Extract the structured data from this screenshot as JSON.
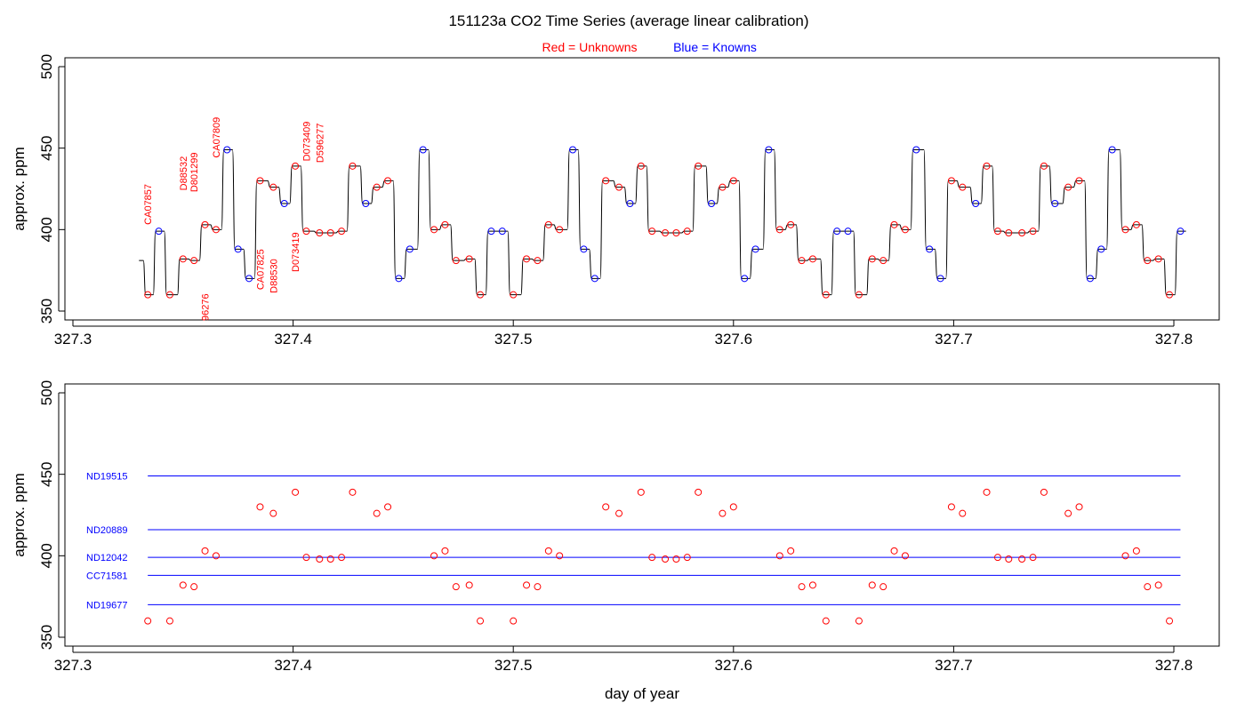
{
  "title": "151123a   CO2 Time Series (average linear calibration)",
  "legend": {
    "red_prefix": "Red = ",
    "red_label": "Unknowns",
    "blue_prefix": "Blue = ",
    "blue_label": "Knowns"
  },
  "colors": {
    "unknown": "#ff0000",
    "known": "#0000ff",
    "trace": "#000000",
    "axis": "#000000"
  },
  "chart_data": [
    {
      "type": "line",
      "name": "top-panel",
      "xlabel": "",
      "ylabel": "approx. ppm",
      "xlim": [
        327.3,
        327.8
      ],
      "ylim": [
        345,
        500
      ],
      "xticks": [
        327.3,
        327.4,
        327.5,
        327.6,
        327.7,
        327.8
      ],
      "xtick_labels": [
        "327.3",
        "327.4",
        "327.5",
        "327.6",
        "327.7",
        "327.8"
      ],
      "yticks": [
        350,
        400,
        450,
        500
      ],
      "ytick_labels": [
        "350",
        "400",
        "450",
        "500"
      ],
      "trace": {
        "start": [
          327.33,
          381
        ],
        "points": [
          [
            327.334,
            360,
            "u"
          ],
          [
            327.339,
            399,
            "k"
          ],
          [
            327.344,
            360,
            "u"
          ],
          [
            327.35,
            382,
            "u"
          ],
          [
            327.355,
            381,
            "u"
          ],
          [
            327.36,
            403,
            "u"
          ],
          [
            327.365,
            400,
            "u"
          ],
          [
            327.37,
            449,
            "k"
          ],
          [
            327.375,
            388,
            "k"
          ],
          [
            327.38,
            370,
            "k"
          ],
          [
            327.385,
            430,
            "u"
          ],
          [
            327.391,
            426,
            "u"
          ],
          [
            327.396,
            416,
            "k"
          ],
          [
            327.401,
            439,
            "u"
          ],
          [
            327.406,
            399,
            "u"
          ],
          [
            327.412,
            398,
            "u"
          ],
          [
            327.417,
            398,
            "u"
          ],
          [
            327.422,
            399,
            "u"
          ],
          [
            327.427,
            439,
            "u"
          ],
          [
            327.433,
            416,
            "k"
          ],
          [
            327.438,
            426,
            "u"
          ],
          [
            327.443,
            430,
            "u"
          ],
          [
            327.448,
            370,
            "k"
          ],
          [
            327.453,
            388,
            "k"
          ],
          [
            327.459,
            449,
            "k"
          ],
          [
            327.464,
            400,
            "u"
          ],
          [
            327.469,
            403,
            "u"
          ],
          [
            327.474,
            381,
            "u"
          ],
          [
            327.48,
            382,
            "u"
          ],
          [
            327.485,
            360,
            "u"
          ],
          [
            327.49,
            399,
            "k"
          ],
          [
            327.495,
            399,
            "k"
          ],
          [
            327.5,
            360,
            "u"
          ],
          [
            327.506,
            382,
            "u"
          ],
          [
            327.511,
            381,
            "u"
          ],
          [
            327.516,
            403,
            "u"
          ],
          [
            327.521,
            400,
            "u"
          ],
          [
            327.527,
            449,
            "k"
          ],
          [
            327.532,
            388,
            "k"
          ],
          [
            327.537,
            370,
            "k"
          ],
          [
            327.542,
            430,
            "u"
          ],
          [
            327.548,
            426,
            "u"
          ],
          [
            327.553,
            416,
            "k"
          ],
          [
            327.558,
            439,
            "u"
          ],
          [
            327.563,
            399,
            "u"
          ],
          [
            327.569,
            398,
            "u"
          ],
          [
            327.574,
            398,
            "u"
          ],
          [
            327.579,
            399,
            "u"
          ],
          [
            327.584,
            439,
            "u"
          ],
          [
            327.59,
            416,
            "k"
          ],
          [
            327.595,
            426,
            "u"
          ],
          [
            327.6,
            430,
            "u"
          ],
          [
            327.605,
            370,
            "k"
          ],
          [
            327.61,
            388,
            "k"
          ],
          [
            327.616,
            449,
            "k"
          ],
          [
            327.621,
            400,
            "u"
          ],
          [
            327.626,
            403,
            "u"
          ],
          [
            327.631,
            381,
            "u"
          ],
          [
            327.636,
            382,
            "u"
          ],
          [
            327.642,
            360,
            "u"
          ],
          [
            327.647,
            399,
            "k"
          ],
          [
            327.652,
            399,
            "k"
          ],
          [
            327.657,
            360,
            "u"
          ],
          [
            327.663,
            382,
            "u"
          ],
          [
            327.668,
            381,
            "u"
          ],
          [
            327.673,
            403,
            "u"
          ],
          [
            327.678,
            400,
            "u"
          ],
          [
            327.683,
            449,
            "k"
          ],
          [
            327.689,
            388,
            "k"
          ],
          [
            327.694,
            370,
            "k"
          ],
          [
            327.699,
            430,
            "u"
          ],
          [
            327.704,
            426,
            "u"
          ],
          [
            327.71,
            416,
            "k"
          ],
          [
            327.715,
            439,
            "u"
          ],
          [
            327.72,
            399,
            "u"
          ],
          [
            327.725,
            398,
            "u"
          ],
          [
            327.731,
            398,
            "u"
          ],
          [
            327.736,
            399,
            "u"
          ],
          [
            327.741,
            439,
            "u"
          ],
          [
            327.746,
            416,
            "k"
          ],
          [
            327.752,
            426,
            "u"
          ],
          [
            327.757,
            430,
            "u"
          ],
          [
            327.762,
            370,
            "k"
          ],
          [
            327.767,
            388,
            "k"
          ],
          [
            327.772,
            449,
            "k"
          ],
          [
            327.778,
            400,
            "u"
          ],
          [
            327.783,
            403,
            "u"
          ],
          [
            327.788,
            381,
            "u"
          ],
          [
            327.793,
            382,
            "u"
          ],
          [
            327.798,
            360,
            "u"
          ],
          [
            327.803,
            399,
            "k"
          ]
        ]
      },
      "annotations": [
        {
          "text": "CA07857",
          "x": 327.334,
          "y": 403
        },
        {
          "text": "D88532",
          "x": 327.35,
          "y": 424
        },
        {
          "text": "D801299",
          "x": 327.355,
          "y": 423
        },
        {
          "text": "CA07809",
          "x": 327.365,
          "y": 444
        },
        {
          "text": "D073409",
          "x": 327.406,
          "y": 442
        },
        {
          "text": "D596277",
          "x": 327.412,
          "y": 441
        },
        {
          "text": "96276",
          "x": 327.36,
          "y": 344
        },
        {
          "text": "CA07825",
          "x": 327.385,
          "y": 363
        },
        {
          "text": "D88530",
          "x": 327.391,
          "y": 361
        },
        {
          "text": "D073419",
          "x": 327.401,
          "y": 374
        }
      ]
    },
    {
      "type": "scatter",
      "name": "bottom-panel",
      "xlabel": "day of year",
      "ylabel": "approx. ppm",
      "xlim": [
        327.3,
        327.8
      ],
      "ylim": [
        345,
        500
      ],
      "xticks": [
        327.3,
        327.4,
        327.5,
        327.6,
        327.7,
        327.8
      ],
      "xtick_labels": [
        "327.3",
        "327.4",
        "327.5",
        "327.6",
        "327.7",
        "327.8"
      ],
      "yticks": [
        350,
        400,
        450,
        500
      ],
      "ytick_labels": [
        "350",
        "400",
        "450",
        "500"
      ],
      "reference_lines": [
        {
          "name": "ND19515",
          "value": 449
        },
        {
          "name": "ND20889",
          "value": 416
        },
        {
          "name": "ND12042",
          "value": 399
        },
        {
          "name": "CC71581",
          "value": 388
        },
        {
          "name": "ND19677",
          "value": 370
        }
      ],
      "reference_x_range": [
        327.334,
        327.803
      ]
    }
  ]
}
